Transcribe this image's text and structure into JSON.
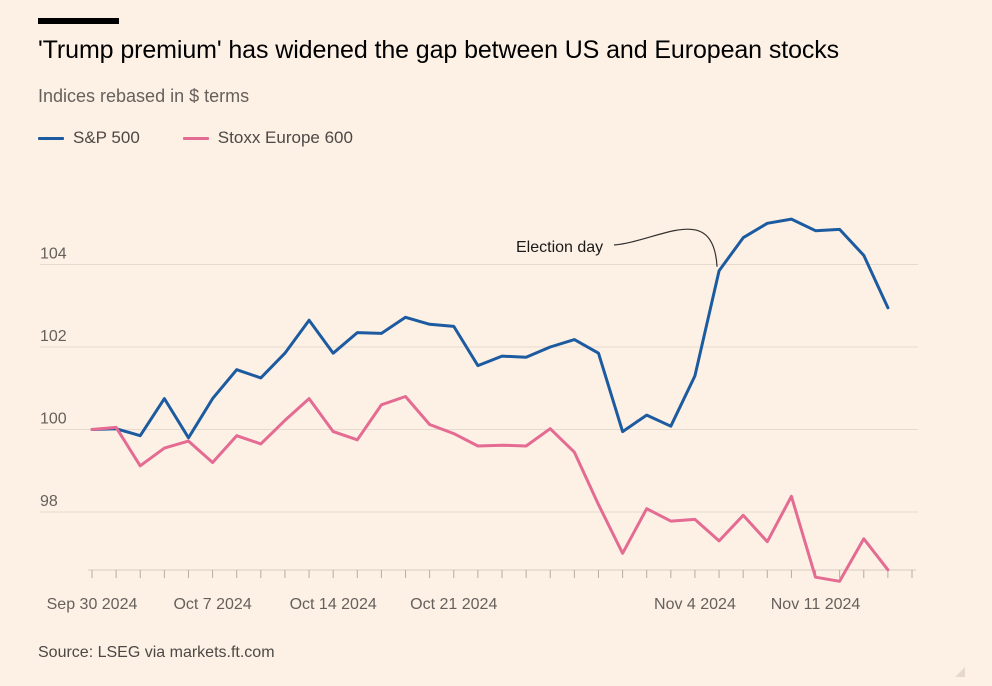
{
  "header": {
    "title": "'Trump premium' has widened the gap between US and European stocks",
    "subtitle": "Indices rebased in $ terms"
  },
  "legend": [
    {
      "label": "S&P 500",
      "color": "#1c5ba0"
    },
    {
      "label": "Stoxx Europe 600",
      "color": "#e46b92"
    }
  ],
  "footer": {
    "source": "Source: LSEG via markets.ft.com"
  },
  "chart_data": {
    "type": "line",
    "title": "'Trump premium' has widened the gap between US and European stocks",
    "subtitle": "Indices rebased in $ terms",
    "xlabel": "",
    "ylabel": "",
    "ylim": [
      96.4,
      106.0
    ],
    "yticks": [
      98,
      100,
      102,
      104
    ],
    "grid": "horizontal",
    "legend_position": "top-left",
    "x": [
      "2024-09-30",
      "2024-10-01",
      "2024-10-02",
      "2024-10-03",
      "2024-10-04",
      "2024-10-07",
      "2024-10-08",
      "2024-10-09",
      "2024-10-10",
      "2024-10-11",
      "2024-10-14",
      "2024-10-15",
      "2024-10-16",
      "2024-10-17",
      "2024-10-18",
      "2024-10-21",
      "2024-10-22",
      "2024-10-23",
      "2024-10-24",
      "2024-10-25",
      "2024-10-28",
      "2024-10-29",
      "2024-10-30",
      "2024-10-31",
      "2024-11-01",
      "2024-11-04",
      "2024-11-05",
      "2024-11-06",
      "2024-11-07",
      "2024-11-08",
      "2024-11-11",
      "2024-11-12",
      "2024-11-13",
      "2024-11-14",
      "2024-11-15"
    ],
    "xtick_labels": [
      {
        "x": "2024-09-30",
        "label": "Sep 30 2024"
      },
      {
        "x": "2024-10-07",
        "label": "Oct 7 2024"
      },
      {
        "x": "2024-10-14",
        "label": "Oct 14 2024"
      },
      {
        "x": "2024-10-21",
        "label": "Oct 21 2024"
      },
      {
        "x": "2024-11-04",
        "label": "Nov 4 2024"
      },
      {
        "x": "2024-11-11",
        "label": "Nov 11 2024"
      }
    ],
    "series": [
      {
        "name": "S&P 500",
        "color": "#1c5ba0",
        "values": [
          100.0,
          100.02,
          99.85,
          100.75,
          99.8,
          100.75,
          101.45,
          101.25,
          101.85,
          102.65,
          101.85,
          102.35,
          102.33,
          102.72,
          102.55,
          102.5,
          101.55,
          101.78,
          101.75,
          102.0,
          102.18,
          101.85,
          99.95,
          100.35,
          100.08,
          101.3,
          103.85,
          104.65,
          105.0,
          105.1,
          104.82,
          104.85,
          104.22,
          102.95,
          null
        ]
      },
      {
        "name": "Stoxx Europe 600",
        "color": "#e46b92",
        "values": [
          100.0,
          100.05,
          99.12,
          99.55,
          99.72,
          99.2,
          99.85,
          99.65,
          100.22,
          100.75,
          99.95,
          99.75,
          100.6,
          100.8,
          100.12,
          99.9,
          99.6,
          99.62,
          99.6,
          100.02,
          99.45,
          98.18,
          97.0,
          98.08,
          97.78,
          97.82,
          97.3,
          97.92,
          97.28,
          98.38,
          96.42,
          96.32,
          97.35,
          96.6,
          null
        ]
      }
    ],
    "annotations": [
      {
        "text": "Election day",
        "x": "2024-11-05",
        "series": "S&P 500"
      }
    ]
  }
}
